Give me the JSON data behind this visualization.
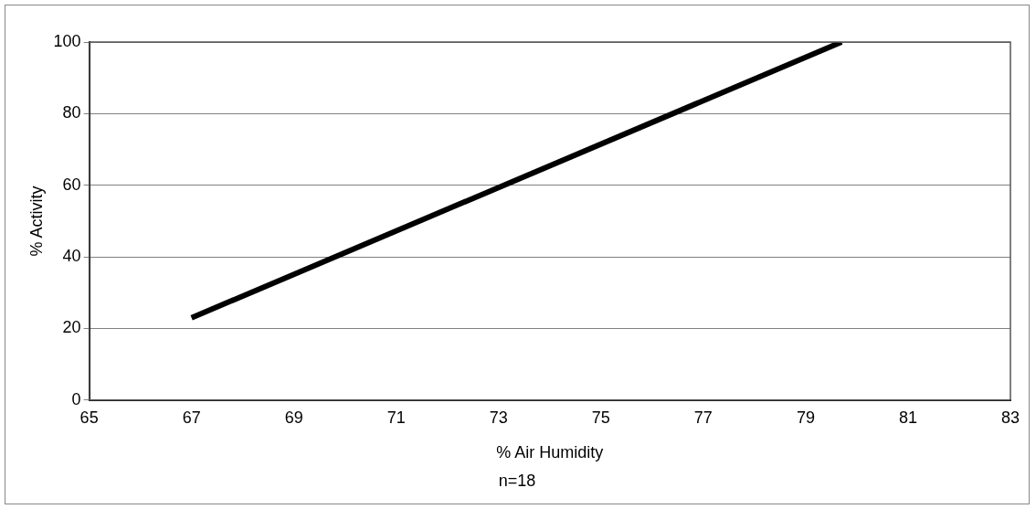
{
  "chart_data": {
    "type": "line",
    "xlabel": "% Air Humidity",
    "annotations": [
      "n=18"
    ],
    "ylabel": "% Activity",
    "x": [
      67,
      79.7
    ],
    "series": [
      {
        "color": "#000000",
        "values": [
          23,
          100
        ]
      }
    ],
    "xlim": [
      65,
      83
    ],
    "xticks": [
      65,
      67,
      69,
      71,
      73,
      75,
      77,
      79,
      81,
      83
    ],
    "ylim": [
      0,
      100
    ],
    "yticks": [
      0,
      20,
      40,
      60,
      80,
      100
    ],
    "grid": "y",
    "legend": false,
    "marker": "none",
    "line_style": "solid"
  }
}
